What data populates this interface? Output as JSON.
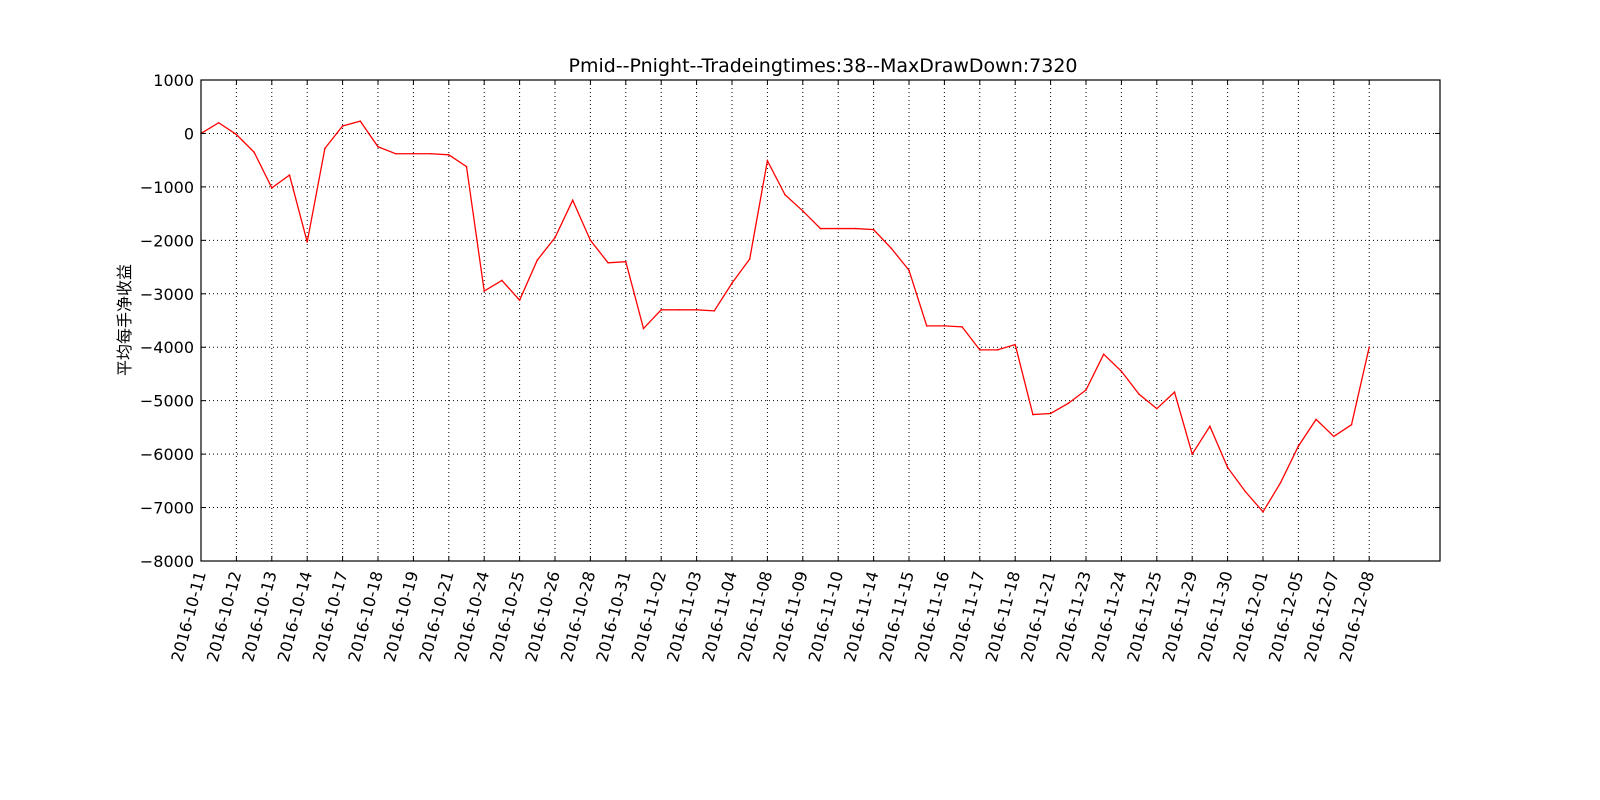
{
  "chart_data": {
    "type": "line",
    "title": "Pmid--Pnight--Tradeingtimes:38--MaxDrawDown:7320",
    "xlabel": "",
    "ylabel": "平均每手净收益",
    "ylim": [
      -8000,
      1000
    ],
    "yticks": [
      1000,
      0,
      -1000,
      -2000,
      -3000,
      -4000,
      -5000,
      -6000,
      -7000,
      -8000
    ],
    "ytick_labels": [
      "1000",
      "0",
      "−1000",
      "−2000",
      "−3000",
      "−4000",
      "−5000",
      "−6000",
      "−7000",
      "−8000"
    ],
    "grid": true,
    "xtick_labels": [
      "2016-10-11",
      "2016-10-12",
      "2016-10-13",
      "2016-10-14",
      "2016-10-17",
      "2016-10-18",
      "2016-10-19",
      "2016-10-21",
      "2016-10-24",
      "2016-10-25",
      "2016-10-26",
      "2016-10-28",
      "2016-10-31",
      "2016-11-02",
      "2016-11-03",
      "2016-11-04",
      "2016-11-08",
      "2016-11-09",
      "2016-11-10",
      "2016-11-14",
      "2016-11-15",
      "2016-11-16",
      "2016-11-17",
      "2016-11-18",
      "2016-11-21",
      "2016-11-23",
      "2016-11-24",
      "2016-11-25",
      "2016-11-29",
      "2016-11-30",
      "2016-12-01",
      "2016-12-05",
      "2016-12-07",
      "2016-12-08"
    ],
    "x_range": [
      0,
      70
    ],
    "series": [
      {
        "color": "#ff0000",
        "x": [
          0,
          1,
          2,
          3,
          4,
          5,
          6,
          7,
          8,
          9,
          10,
          11,
          12,
          13,
          14,
          15,
          16,
          17,
          18,
          19,
          20,
          21,
          22,
          23,
          24,
          25,
          26,
          27,
          28,
          29,
          30,
          31,
          32,
          33,
          34,
          35,
          36,
          37,
          38,
          39,
          40,
          41,
          42,
          43,
          44,
          45,
          46,
          47,
          48,
          49,
          50,
          51,
          52,
          53,
          54,
          55,
          56,
          57,
          58,
          59,
          60,
          61,
          62,
          63,
          64,
          65,
          66
        ],
        "values": [
          0,
          200,
          -20,
          -350,
          -1020,
          -780,
          -2030,
          -280,
          140,
          230,
          -250,
          -380,
          -380,
          -380,
          -400,
          -620,
          -2950,
          -2750,
          -3120,
          -2370,
          -1950,
          -1250,
          -2000,
          -2420,
          -2400,
          -3650,
          -3300,
          -3300,
          -3300,
          -3320,
          -2800,
          -2350,
          -510,
          -1150,
          -1450,
          -1780,
          -1780,
          -1780,
          -1800,
          -2150,
          -2560,
          -3600,
          -3600,
          -3620,
          -4050,
          -4050,
          -3950,
          -5260,
          -5240,
          -5050,
          -4800,
          -4130,
          -4450,
          -4880,
          -5150,
          -4840,
          -6000,
          -5480,
          -6250,
          -6700,
          -7080,
          -6530,
          -5850,
          -5350,
          -5670,
          -5450,
          -4000
        ]
      }
    ]
  }
}
